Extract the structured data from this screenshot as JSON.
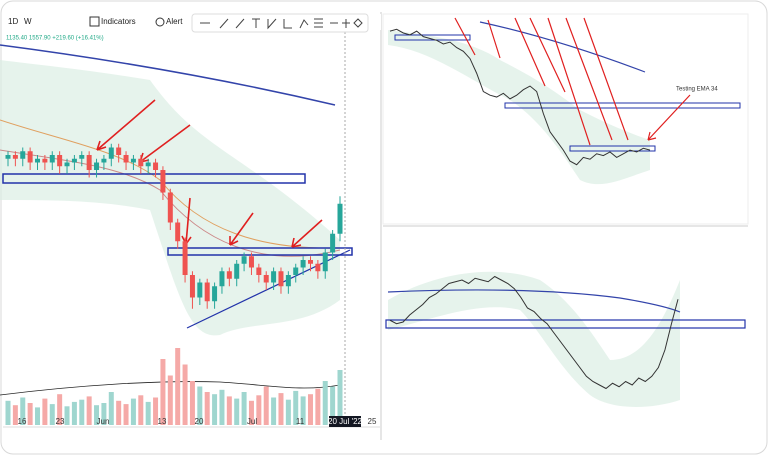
{
  "toolbar": {
    "interval": "1D",
    "style": "W",
    "indicators": "Indicators",
    "alert": "Alert"
  },
  "chart_data": [
    {
      "type": "candlestick",
      "info": "1135.40 1557.90 +219.60 (+16.41%)",
      "x_labels": [
        "16",
        "23",
        "Jun",
        "13",
        "20",
        "Jul",
        "11",
        "20 Jul '22",
        "25"
      ],
      "ylim": [
        0,
        100
      ],
      "volume_lim": [
        0,
        100
      ],
      "open": [
        67,
        68,
        67,
        69,
        66,
        67,
        66,
        68,
        65,
        66,
        67,
        68,
        64,
        66,
        67,
        70,
        68,
        66,
        67,
        65,
        66,
        64,
        58,
        50,
        45,
        36,
        30,
        34,
        29,
        33,
        37,
        35,
        39,
        41,
        38,
        36,
        34,
        37,
        33,
        36,
        38,
        40,
        39,
        37,
        42,
        47
      ],
      "high": [
        69,
        69,
        70,
        70,
        68,
        68,
        69,
        69,
        67,
        68,
        69,
        69,
        67,
        68,
        71,
        71,
        69,
        68,
        68,
        67,
        67,
        65,
        59,
        51,
        46,
        37,
        35,
        35,
        34,
        38,
        38,
        40,
        42,
        42,
        39,
        37,
        38,
        38,
        37,
        39,
        41,
        41,
        40,
        43,
        48,
        57
      ],
      "low": [
        65,
        65,
        65,
        64,
        64,
        64,
        64,
        63,
        63,
        64,
        65,
        62,
        62,
        64,
        65,
        66,
        64,
        64,
        63,
        63,
        62,
        56,
        48,
        43,
        34,
        27,
        28,
        27,
        27,
        31,
        33,
        33,
        37,
        36,
        34,
        32,
        32,
        31,
        31,
        34,
        36,
        37,
        35,
        35,
        40,
        45
      ],
      "close": [
        68,
        67,
        69,
        66,
        67,
        66,
        68,
        65,
        66,
        67,
        68,
        64,
        66,
        67,
        70,
        68,
        66,
        67,
        65,
        66,
        64,
        58,
        50,
        45,
        36,
        30,
        34,
        29,
        33,
        37,
        35,
        39,
        41,
        38,
        36,
        34,
        37,
        33,
        36,
        38,
        40,
        39,
        37,
        42,
        47,
        55
      ],
      "volume": [
        22,
        18,
        25,
        20,
        16,
        24,
        19,
        28,
        17,
        21,
        23,
        26,
        18,
        20,
        30,
        22,
        19,
        24,
        27,
        21,
        25,
        60,
        45,
        70,
        55,
        40,
        35,
        30,
        28,
        32,
        26,
        24,
        30,
        22,
        27,
        35,
        25,
        29,
        23,
        31,
        26,
        28,
        33,
        40,
        35,
        50
      ]
    },
    {
      "type": "line",
      "annotation": "Testing EMA 34",
      "ylim": [
        0,
        100
      ],
      "values": [
        95,
        96,
        94,
        93,
        95,
        92,
        91,
        90,
        88,
        89,
        86,
        84,
        80,
        72,
        62,
        60,
        59,
        61,
        58,
        60,
        63,
        65,
        62,
        50,
        40,
        35,
        30,
        24,
        22,
        26,
        25,
        28,
        27,
        29,
        26,
        28,
        30,
        29,
        31,
        30
      ]
    },
    {
      "type": "line",
      "ylim": [
        0,
        100
      ],
      "values": [
        57,
        55,
        56,
        60,
        63,
        66,
        70,
        72,
        75,
        78,
        79,
        80,
        78,
        81,
        80,
        79,
        82,
        80,
        78,
        75,
        70,
        64,
        62,
        58,
        55,
        50,
        45,
        40,
        35,
        30,
        25,
        22,
        20,
        18,
        21,
        19,
        22,
        20,
        24,
        22,
        25,
        30,
        40,
        55,
        69
      ]
    }
  ]
}
